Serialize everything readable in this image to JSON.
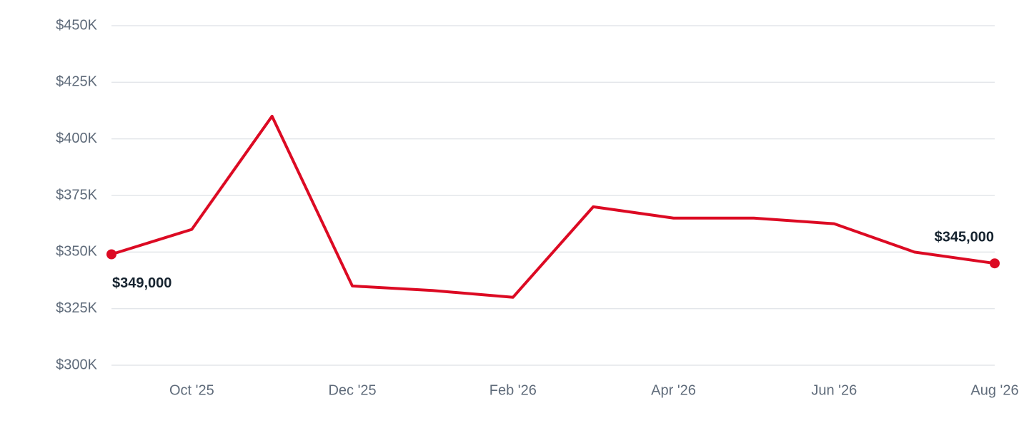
{
  "chart_data": {
    "type": "line",
    "categories": [
      null,
      "Oct '25",
      null,
      "Dec '25",
      null,
      "Feb '26",
      null,
      "Apr '26",
      null,
      "Jun '26",
      null,
      "Aug '26"
    ],
    "series": [
      {
        "color": "#dc0a23",
        "values": [
          349000,
          360000,
          410000,
          335000,
          333000,
          330000,
          370000,
          365000,
          365000,
          362500,
          350000,
          345000
        ],
        "value_labels": [
          "$349,000",
          null,
          null,
          null,
          null,
          null,
          null,
          null,
          null,
          null,
          null,
          "$345,000"
        ]
      }
    ],
    "ylim": [
      300000,
      450000
    ],
    "yticks": [
      {
        "value": 300000,
        "label": "$300K"
      },
      {
        "value": 325000,
        "label": "$325K"
      },
      {
        "value": 350000,
        "label": "$350K"
      },
      {
        "value": 375000,
        "label": "$375K"
      },
      {
        "value": 400000,
        "label": "$400K"
      },
      {
        "value": 425000,
        "label": "$425K"
      },
      {
        "value": 450000,
        "label": "$450K"
      }
    ],
    "grid": true
  }
}
